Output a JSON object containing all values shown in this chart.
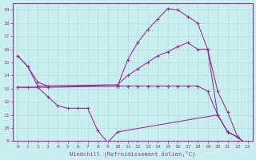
{
  "xlabel": "Windchill (Refroidissement éolien,°C)",
  "background_color": "#c8eeee",
  "line_color": "#993399",
  "grid_color": "#b0dede",
  "xlim": [
    -0.5,
    23.5
  ],
  "ylim": [
    9,
    19.5
  ],
  "xticks": [
    0,
    1,
    2,
    3,
    4,
    5,
    6,
    7,
    8,
    9,
    10,
    11,
    12,
    13,
    14,
    15,
    16,
    17,
    18,
    19,
    20,
    21,
    22,
    23
  ],
  "yticks": [
    9,
    10,
    11,
    12,
    13,
    14,
    15,
    16,
    17,
    18,
    19
  ],
  "lines": [
    {
      "x": [
        0,
        1,
        2,
        3,
        10,
        11,
        12,
        13,
        14,
        15,
        16,
        17,
        18,
        19,
        20,
        21,
        22,
        23
      ],
      "y": [
        15.5,
        14.7,
        13.2,
        13.2,
        13.2,
        15.2,
        16.5,
        17.5,
        18.3,
        19.1,
        19.0,
        18.5,
        18.0,
        16.0,
        11.0,
        9.7,
        9.3,
        8.7
      ]
    },
    {
      "x": [
        0,
        1,
        2,
        3,
        10,
        11,
        12,
        13,
        14,
        15,
        16,
        17,
        18,
        19,
        20,
        21,
        22,
        23
      ],
      "y": [
        15.5,
        14.7,
        13.5,
        13.2,
        13.3,
        14.0,
        14.5,
        15.0,
        15.5,
        15.8,
        16.2,
        16.5,
        16.0,
        16.0,
        12.8,
        11.2,
        9.3,
        8.7
      ]
    },
    {
      "x": [
        0,
        3,
        10,
        11,
        12,
        13,
        14,
        15,
        16,
        17,
        18,
        19,
        20,
        21,
        22,
        23
      ],
      "y": [
        13.1,
        13.1,
        13.2,
        13.2,
        13.2,
        13.2,
        13.2,
        13.2,
        13.2,
        13.2,
        13.2,
        12.8,
        11.0,
        9.7,
        9.3,
        8.7
      ]
    },
    {
      "x": [
        0,
        1,
        2,
        3,
        4,
        5,
        6,
        7,
        8,
        9,
        10,
        20,
        21,
        22,
        23
      ],
      "y": [
        13.1,
        13.1,
        13.1,
        12.4,
        11.7,
        11.5,
        11.5,
        11.5,
        9.8,
        8.9,
        9.7,
        11.0,
        9.7,
        9.3,
        8.7
      ]
    }
  ]
}
